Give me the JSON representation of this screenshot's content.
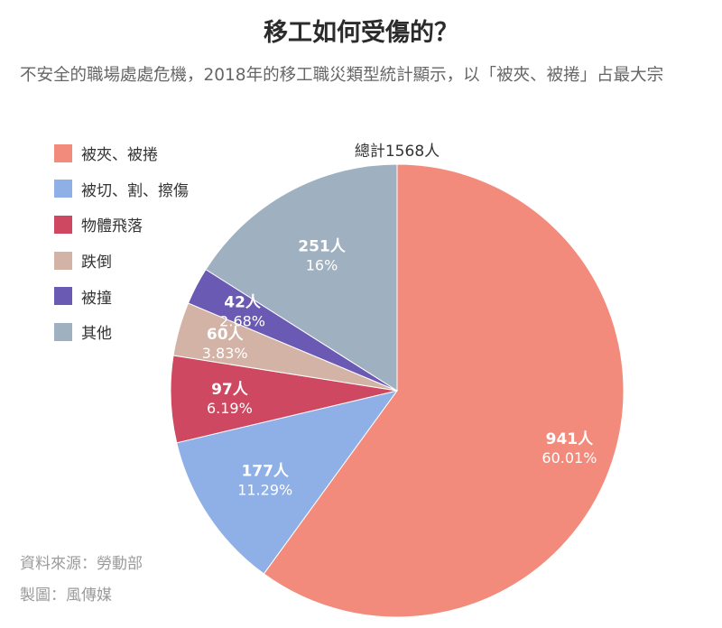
{
  "title": "移工如何受傷的？",
  "subtitle": "不安全的職場處處危機，2018年的移工職災類型統計顯示，以「被夾、被捲」占最大宗",
  "total_label": "總計1568人",
  "source_lines": [
    "資料來源：勞動部",
    "製圖：風傳媒"
  ],
  "chart_data": {
    "type": "pie",
    "title": "移工如何受傷的？",
    "total": 1568,
    "categories": [
      "被夾、被捲",
      "被切、割、擦傷",
      "物體飛落",
      "跌倒",
      "被撞",
      "其他"
    ],
    "values": [
      941,
      177,
      97,
      60,
      42,
      251
    ],
    "value_labels": [
      "941人",
      "177人",
      "97人",
      "60人",
      "42人",
      "251人"
    ],
    "percent_labels": [
      "60.01%",
      "11.29%",
      "6.19%",
      "3.83%",
      "2.68%",
      "16%"
    ],
    "colors": [
      "#f28b7b",
      "#8fb0e7",
      "#cd4860",
      "#d4b3a7",
      "#6a5ab4",
      "#9fb0c0"
    ],
    "legend_position": "top-left"
  }
}
